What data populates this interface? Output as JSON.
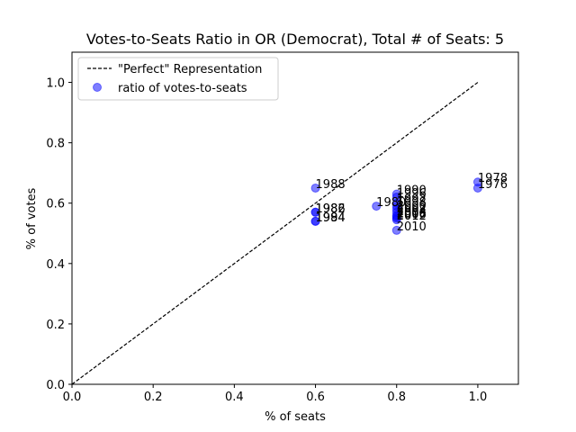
{
  "chart_data": {
    "type": "scatter",
    "title": "Votes-to-Seats Ratio in OR (Democrat), Total # of Seats: 5",
    "xlabel": "% of seats",
    "ylabel": "% of votes",
    "xlim": [
      0.0,
      1.1
    ],
    "ylim": [
      0.0,
      1.1
    ],
    "xticks": [
      "0.0",
      "0.2",
      "0.4",
      "0.6",
      "0.8",
      "1.0"
    ],
    "yticks": [
      "0.0",
      "0.2",
      "0.4",
      "0.6",
      "0.8",
      "1.0"
    ],
    "grid": false,
    "legend_position": "top-left",
    "legend": {
      "line_label": "\"Perfect\" Representation",
      "points_label": "ratio of votes-to-seats"
    },
    "reference_line": {
      "x": [
        0,
        1
      ],
      "y": [
        0,
        1
      ],
      "style": "dashed",
      "color": "#000000"
    },
    "point_color": "#0000ff",
    "points": [
      {
        "year": "1976",
        "x": 1.0,
        "y": 0.65
      },
      {
        "year": "1978",
        "x": 1.0,
        "y": 0.67
      },
      {
        "year": "1980",
        "x": 0.75,
        "y": 0.59
      },
      {
        "year": "1982",
        "x": 0.6,
        "y": 0.57
      },
      {
        "year": "1984",
        "x": 0.6,
        "y": 0.54
      },
      {
        "year": "1986",
        "x": 0.6,
        "y": 0.57
      },
      {
        "year": "1988",
        "x": 0.6,
        "y": 0.65
      },
      {
        "year": "1990",
        "x": 0.8,
        "y": 0.63
      },
      {
        "year": "1992",
        "x": 0.8,
        "y": 0.6
      },
      {
        "year": "1994",
        "x": 0.6,
        "y": 0.54
      },
      {
        "year": "1996",
        "x": 0.8,
        "y": 0.62
      },
      {
        "year": "1998",
        "x": 0.8,
        "y": 0.59
      },
      {
        "year": "2000",
        "x": 0.8,
        "y": 0.58
      },
      {
        "year": "2002",
        "x": 0.8,
        "y": 0.57
      },
      {
        "year": "2004",
        "x": 0.8,
        "y": 0.56
      },
      {
        "year": "2006",
        "x": 0.8,
        "y": 0.55
      },
      {
        "year": "2008",
        "x": 0.8,
        "y": 0.555
      },
      {
        "year": "2010",
        "x": 0.8,
        "y": 0.51
      },
      {
        "year": "2012",
        "x": 0.8,
        "y": 0.545
      }
    ]
  }
}
